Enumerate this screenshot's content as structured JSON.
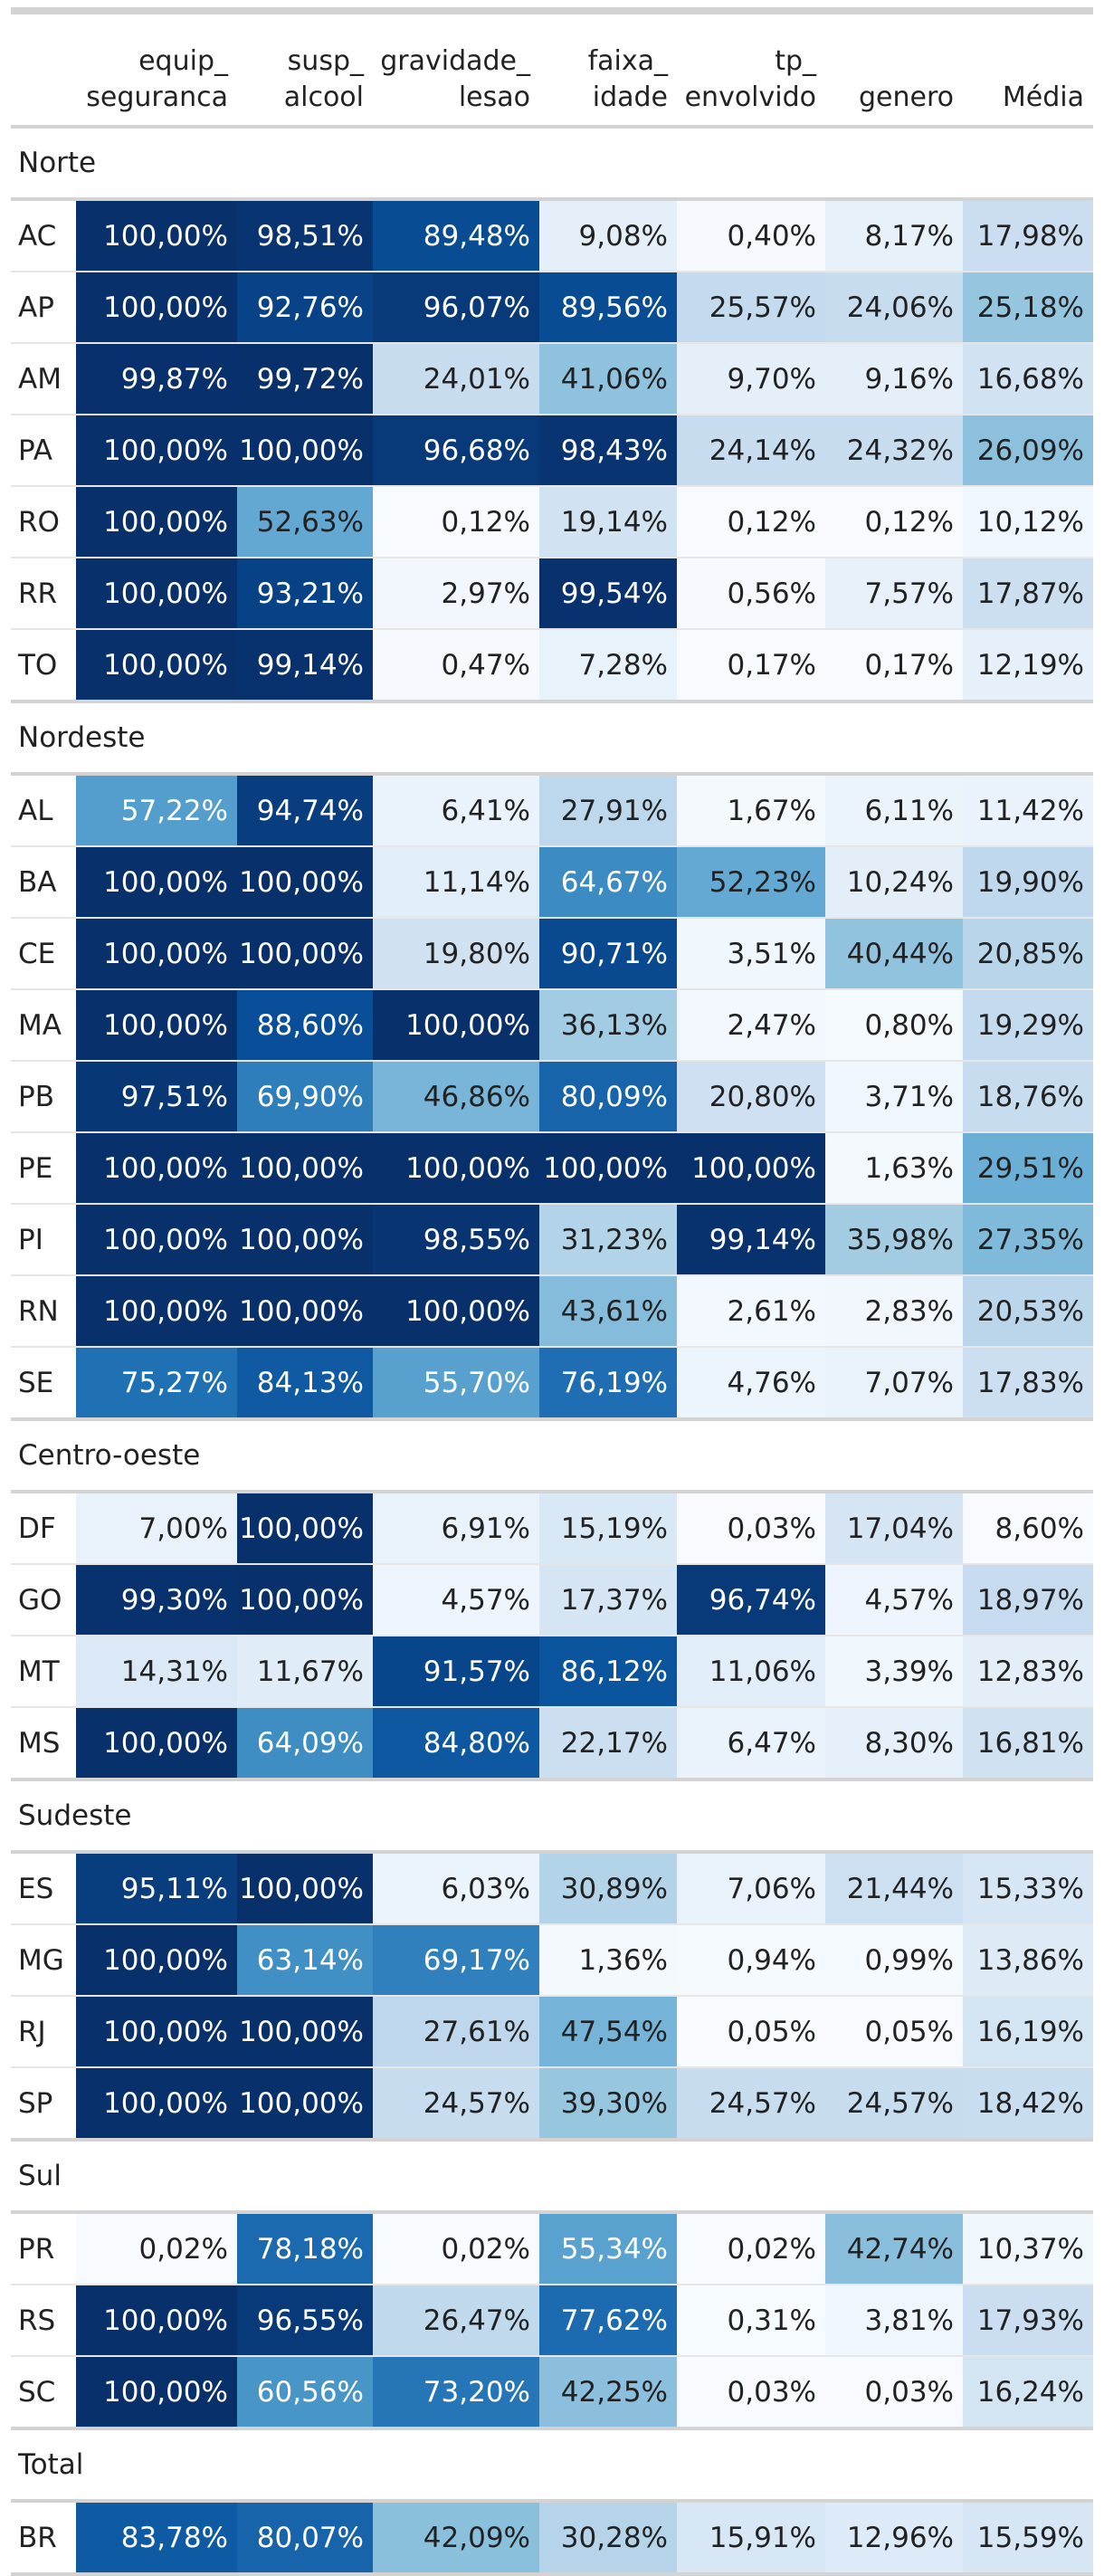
{
  "columns": [
    {
      "key": "uf",
      "label": ""
    },
    {
      "key": "equip",
      "label": "equip_\nseguranca"
    },
    {
      "key": "susp",
      "label": "susp_\nalcool"
    },
    {
      "key": "grav",
      "label": "gravidade_\nlesao"
    },
    {
      "key": "faixa",
      "label": "faixa_\nidade"
    },
    {
      "key": "tp",
      "label": "tp_\nenvolvido"
    },
    {
      "key": "genero",
      "label": "genero"
    },
    {
      "key": "media",
      "label": "Média"
    }
  ],
  "color_scale": {
    "stops": [
      "#f7fbff",
      "#deebf7",
      "#c6dbef",
      "#9ecae1",
      "#6baed6",
      "#4292c6",
      "#2171b5",
      "#08519c",
      "#08306b"
    ],
    "text_light": "#ffffff",
    "text_dark": "#222222"
  },
  "groups": [
    {
      "name": "Norte",
      "rows": [
        {
          "uf": "AC",
          "values": [
            "100,00%",
            "98,51%",
            "89,48%",
            "9,08%",
            "0,40%",
            "8,17%",
            "17,98%"
          ]
        },
        {
          "uf": "AP",
          "values": [
            "100,00%",
            "92,76%",
            "96,07%",
            "89,56%",
            "25,57%",
            "24,06%",
            "25,18%"
          ]
        },
        {
          "uf": "AM",
          "values": [
            "99,87%",
            "99,72%",
            "24,01%",
            "41,06%",
            "9,70%",
            "9,16%",
            "16,68%"
          ]
        },
        {
          "uf": "PA",
          "values": [
            "100,00%",
            "100,00%",
            "96,68%",
            "98,43%",
            "24,14%",
            "24,32%",
            "26,09%"
          ]
        },
        {
          "uf": "RO",
          "values": [
            "100,00%",
            "52,63%",
            "0,12%",
            "19,14%",
            "0,12%",
            "0,12%",
            "10,12%"
          ]
        },
        {
          "uf": "RR",
          "values": [
            "100,00%",
            "93,21%",
            "2,97%",
            "99,54%",
            "0,56%",
            "7,57%",
            "17,87%"
          ]
        },
        {
          "uf": "TO",
          "values": [
            "100,00%",
            "99,14%",
            "0,47%",
            "7,28%",
            "0,17%",
            "0,17%",
            "12,19%"
          ]
        }
      ]
    },
    {
      "name": "Nordeste",
      "rows": [
        {
          "uf": "AL",
          "values": [
            "57,22%",
            "94,74%",
            "6,41%",
            "27,91%",
            "1,67%",
            "6,11%",
            "11,42%"
          ]
        },
        {
          "uf": "BA",
          "values": [
            "100,00%",
            "100,00%",
            "11,14%",
            "64,67%",
            "52,23%",
            "10,24%",
            "19,90%"
          ]
        },
        {
          "uf": "CE",
          "values": [
            "100,00%",
            "100,00%",
            "19,80%",
            "90,71%",
            "3,51%",
            "40,44%",
            "20,85%"
          ]
        },
        {
          "uf": "MA",
          "values": [
            "100,00%",
            "88,60%",
            "100,00%",
            "36,13%",
            "2,47%",
            "0,80%",
            "19,29%"
          ]
        },
        {
          "uf": "PB",
          "values": [
            "97,51%",
            "69,90%",
            "46,86%",
            "80,09%",
            "20,80%",
            "3,71%",
            "18,76%"
          ]
        },
        {
          "uf": "PE",
          "values": [
            "100,00%",
            "100,00%",
            "100,00%",
            "100,00%",
            "100,00%",
            "1,63%",
            "29,51%"
          ]
        },
        {
          "uf": "PI",
          "values": [
            "100,00%",
            "100,00%",
            "98,55%",
            "31,23%",
            "99,14%",
            "35,98%",
            "27,35%"
          ]
        },
        {
          "uf": "RN",
          "values": [
            "100,00%",
            "100,00%",
            "100,00%",
            "43,61%",
            "2,61%",
            "2,83%",
            "20,53%"
          ]
        },
        {
          "uf": "SE",
          "values": [
            "75,27%",
            "84,13%",
            "55,70%",
            "76,19%",
            "4,76%",
            "7,07%",
            "17,83%"
          ]
        }
      ]
    },
    {
      "name": "Centro-oeste",
      "rows": [
        {
          "uf": "DF",
          "values": [
            "7,00%",
            "100,00%",
            "6,91%",
            "15,19%",
            "0,03%",
            "17,04%",
            "8,60%"
          ]
        },
        {
          "uf": "GO",
          "values": [
            "99,30%",
            "100,00%",
            "4,57%",
            "17,37%",
            "96,74%",
            "4,57%",
            "18,97%"
          ]
        },
        {
          "uf": "MT",
          "values": [
            "14,31%",
            "11,67%",
            "91,57%",
            "86,12%",
            "11,06%",
            "3,39%",
            "12,83%"
          ]
        },
        {
          "uf": "MS",
          "values": [
            "100,00%",
            "64,09%",
            "84,80%",
            "22,17%",
            "6,47%",
            "8,30%",
            "16,81%"
          ]
        }
      ]
    },
    {
      "name": "Sudeste",
      "rows": [
        {
          "uf": "ES",
          "values": [
            "95,11%",
            "100,00%",
            "6,03%",
            "30,89%",
            "7,06%",
            "21,44%",
            "15,33%"
          ]
        },
        {
          "uf": "MG",
          "values": [
            "100,00%",
            "63,14%",
            "69,17%",
            "1,36%",
            "0,94%",
            "0,99%",
            "13,86%"
          ]
        },
        {
          "uf": "RJ",
          "values": [
            "100,00%",
            "100,00%",
            "27,61%",
            "47,54%",
            "0,05%",
            "0,05%",
            "16,19%"
          ]
        },
        {
          "uf": "SP",
          "values": [
            "100,00%",
            "100,00%",
            "24,57%",
            "39,30%",
            "24,57%",
            "24,57%",
            "18,42%"
          ]
        }
      ]
    },
    {
      "name": "Sul",
      "rows": [
        {
          "uf": "PR",
          "values": [
            "0,02%",
            "78,18%",
            "0,02%",
            "55,34%",
            "0,02%",
            "42,74%",
            "10,37%"
          ]
        },
        {
          "uf": "RS",
          "values": [
            "100,00%",
            "96,55%",
            "26,47%",
            "77,62%",
            "0,31%",
            "3,81%",
            "17,93%"
          ]
        },
        {
          "uf": "SC",
          "values": [
            "100,00%",
            "60,56%",
            "73,20%",
            "42,25%",
            "0,03%",
            "0,03%",
            "16,24%"
          ]
        }
      ]
    },
    {
      "name": "Total",
      "rows": [
        {
          "uf": "BR",
          "values": [
            "83,78%",
            "80,07%",
            "42,09%",
            "30,28%",
            "15,91%",
            "12,96%",
            "15,59%"
          ]
        }
      ]
    }
  ]
}
